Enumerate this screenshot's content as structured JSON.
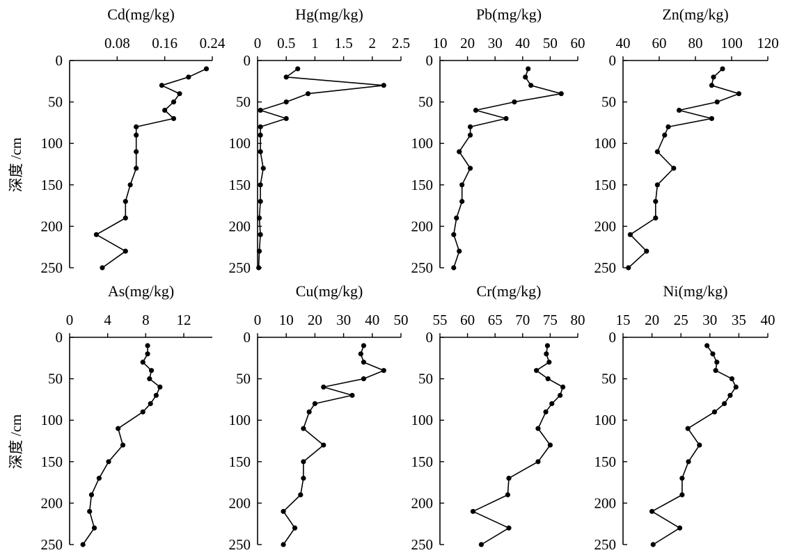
{
  "y_axis_label": "深度 /cm",
  "chart_data": [
    {
      "type": "line",
      "title": "Cd(mg/kg)",
      "ticks": [
        0.08,
        0.16,
        0.24
      ],
      "tick_labels": [
        "0.08",
        "0.16",
        "0.24"
      ],
      "xlim": [
        0.0,
        0.24
      ],
      "ylim": [
        0,
        250
      ],
      "y_ticks": [
        0,
        50,
        100,
        150,
        200,
        250
      ],
      "x": [
        0.23,
        0.2,
        0.155,
        0.185,
        0.175,
        0.16,
        0.175,
        0.112,
        0.112,
        0.112,
        0.112,
        0.102,
        0.094,
        0.094,
        0.045,
        0.094,
        0.055
      ],
      "y": [
        10,
        20,
        30,
        40,
        50,
        60,
        70,
        80,
        90,
        110,
        130,
        150,
        170,
        190,
        210,
        230,
        250
      ]
    },
    {
      "type": "line",
      "title": "Hg(mg/kg)",
      "ticks": [
        0,
        0.5,
        1,
        1.5,
        2,
        2.5
      ],
      "tick_labels": [
        "0",
        "0.5",
        "1",
        "1.5",
        "2",
        "2.5"
      ],
      "xlim": [
        0,
        2.5
      ],
      "ylim": [
        0,
        250
      ],
      "y_ticks": [
        0,
        50,
        100,
        150,
        200,
        250
      ],
      "x": [
        0.7,
        0.5,
        2.2,
        0.88,
        0.5,
        0.05,
        0.5,
        0.05,
        0.05,
        0.05,
        0.1,
        0.05,
        0.05,
        0.03,
        0.05,
        0.03,
        0.02
      ],
      "y": [
        10,
        20,
        30,
        40,
        50,
        60,
        70,
        80,
        90,
        110,
        130,
        150,
        170,
        190,
        210,
        230,
        250
      ]
    },
    {
      "type": "line",
      "title": "Pb(mg/kg)",
      "ticks": [
        10,
        20,
        30,
        40,
        50,
        60
      ],
      "tick_labels": [
        "10",
        "20",
        "30",
        "40",
        "50",
        "60"
      ],
      "xlim": [
        10,
        60
      ],
      "ylim": [
        0,
        250
      ],
      "y_ticks": [
        0,
        50,
        100,
        150,
        200,
        250
      ],
      "x": [
        42,
        41,
        43,
        54,
        37,
        23,
        34,
        21,
        21,
        17,
        21,
        18,
        18,
        16,
        15,
        17,
        15
      ],
      "y": [
        10,
        20,
        30,
        40,
        50,
        60,
        70,
        80,
        90,
        110,
        130,
        150,
        170,
        190,
        210,
        230,
        250
      ]
    },
    {
      "type": "line",
      "title": "Zn(mg/kg)",
      "ticks": [
        40,
        60,
        80,
        100,
        120
      ],
      "tick_labels": [
        "40",
        "60",
        "80",
        "100",
        "120"
      ],
      "xlim": [
        40,
        120
      ],
      "ylim": [
        0,
        250
      ],
      "y_ticks": [
        0,
        50,
        100,
        150,
        200,
        250
      ],
      "x": [
        95,
        90,
        89,
        104,
        92,
        71,
        89,
        65,
        63,
        59,
        68,
        59,
        58,
        58,
        44,
        53,
        43
      ],
      "y": [
        10,
        20,
        30,
        40,
        50,
        60,
        70,
        80,
        90,
        110,
        130,
        150,
        170,
        190,
        210,
        230,
        250
      ]
    },
    {
      "type": "line",
      "title": "As(mg/kg)",
      "ticks": [
        0,
        4,
        8,
        12
      ],
      "tick_labels": [
        "0",
        "4",
        "8",
        "12"
      ],
      "xlim": [
        0,
        15
      ],
      "ylim": [
        0,
        250
      ],
      "y_ticks": [
        0,
        50,
        100,
        150,
        200,
        250
      ],
      "x": [
        8.2,
        8.2,
        7.7,
        8.6,
        8.4,
        9.5,
        9.1,
        8.5,
        7.7,
        5.1,
        5.6,
        4.1,
        3.1,
        2.3,
        2.1,
        2.6,
        1.4
      ],
      "y": [
        10,
        20,
        30,
        40,
        50,
        60,
        70,
        80,
        90,
        110,
        130,
        150,
        170,
        190,
        210,
        230,
        250
      ]
    },
    {
      "type": "line",
      "title": "Cu(mg/kg)",
      "ticks": [
        0,
        10,
        20,
        30,
        40,
        50
      ],
      "tick_labels": [
        "0",
        "10",
        "20",
        "30",
        "40",
        "50"
      ],
      "xlim": [
        0,
        50
      ],
      "ylim": [
        0,
        250
      ],
      "y_ticks": [
        0,
        50,
        100,
        150,
        200,
        250
      ],
      "x": [
        37,
        36,
        37,
        44,
        37,
        23,
        33,
        20,
        18,
        16,
        23,
        16,
        16,
        15,
        9,
        13,
        9
      ],
      "y": [
        10,
        20,
        30,
        40,
        50,
        60,
        70,
        80,
        90,
        110,
        130,
        150,
        170,
        190,
        210,
        230,
        250
      ]
    },
    {
      "type": "line",
      "title": "Cr(mg/kg)",
      "ticks": [
        55,
        60,
        65,
        70,
        75,
        80
      ],
      "tick_labels": [
        "55",
        "60",
        "65",
        "70",
        "75",
        "80"
      ],
      "xlim": [
        55,
        80
      ],
      "ylim": [
        0,
        250
      ],
      "y_ticks": [
        0,
        50,
        100,
        150,
        200,
        250
      ],
      "x": [
        74.5,
        74.3,
        74.8,
        72.5,
        74.6,
        77.3,
        76.8,
        75.3,
        74.2,
        72.8,
        75.0,
        72.8,
        67.5,
        67.3,
        61.0,
        67.5,
        62.5
      ],
      "y": [
        10,
        20,
        30,
        40,
        50,
        60,
        70,
        80,
        90,
        110,
        130,
        150,
        170,
        190,
        210,
        230,
        250
      ]
    },
    {
      "type": "line",
      "title": "Ni(mg/kg)",
      "ticks": [
        15,
        20,
        25,
        30,
        35,
        40
      ],
      "tick_labels": [
        "15",
        "20",
        "25",
        "30",
        "35",
        "40"
      ],
      "xlim": [
        15,
        40
      ],
      "ylim": [
        0,
        250
      ],
      "y_ticks": [
        0,
        50,
        100,
        150,
        200,
        250
      ],
      "x": [
        29.5,
        30.5,
        31.2,
        31.0,
        33.8,
        34.5,
        33.5,
        32.5,
        30.8,
        26.2,
        28.2,
        26.3,
        25.2,
        25.2,
        20.0,
        24.8,
        20.2
      ],
      "y": [
        10,
        20,
        30,
        40,
        50,
        60,
        70,
        80,
        90,
        110,
        130,
        150,
        170,
        190,
        210,
        230,
        250
      ]
    }
  ]
}
